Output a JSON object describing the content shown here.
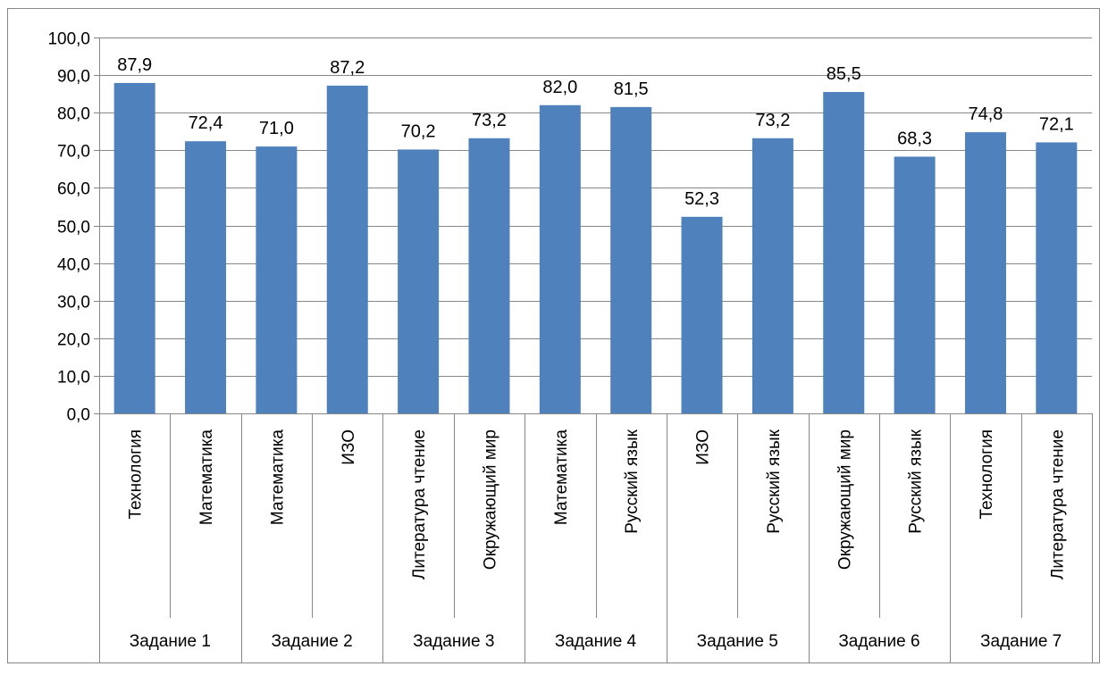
{
  "chart_data": {
    "type": "bar",
    "title": "",
    "xlabel": "",
    "ylabel": "",
    "ylim": [
      0,
      100
    ],
    "ytick_step": 10,
    "ytick_labels": [
      "0,0",
      "10,0",
      "20,0",
      "30,0",
      "40,0",
      "50,0",
      "60,0",
      "70,0",
      "80,0",
      "90,0",
      "100,0"
    ],
    "grid": true,
    "legend": "none",
    "groups": [
      {
        "label": "Задание 1",
        "categories": [
          "Технология",
          "Математика"
        ]
      },
      {
        "label": "Задание 2",
        "categories": [
          "Математика",
          "ИЗО"
        ]
      },
      {
        "label": "Задание 3",
        "categories": [
          "Литература чтение",
          "Окружающий мир"
        ]
      },
      {
        "label": "Задание 4",
        "categories": [
          "Математика",
          "Русский язык"
        ]
      },
      {
        "label": "Задание 5",
        "categories": [
          "ИЗО",
          "Русский язык"
        ]
      },
      {
        "label": "Задание 6",
        "categories": [
          "Окружающий мир",
          "Русский язык"
        ]
      },
      {
        "label": "Задание 7",
        "categories": [
          "Технология",
          "Литература чтение"
        ]
      }
    ],
    "values": [
      87.9,
      72.4,
      71.0,
      87.2,
      70.2,
      73.2,
      82.0,
      81.5,
      52.3,
      73.2,
      85.5,
      68.3,
      74.8,
      72.1
    ],
    "value_labels": [
      "87,9",
      "72,4",
      "71,0",
      "87,2",
      "70,2",
      "73,2",
      "82,0",
      "81,5",
      "52,3",
      "73,2",
      "85,5",
      "68,3",
      "74,8",
      "72,1"
    ],
    "colors": {
      "bar": "#4F81BD",
      "grid": "#878787",
      "axis": "#878787",
      "border": "#878787"
    }
  }
}
